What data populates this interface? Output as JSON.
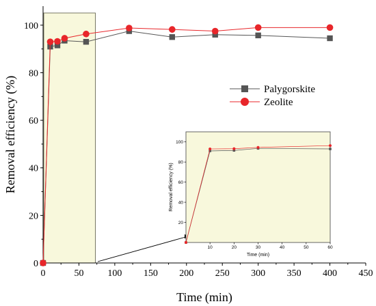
{
  "chart_data": [
    {
      "type": "line",
      "title": "",
      "xlabel": "Time (min)",
      "ylabel": "Removal efficiency (%)",
      "xlim": [
        0,
        450
      ],
      "ylim": [
        0,
        108
      ],
      "xticks": [
        0,
        50,
        100,
        150,
        200,
        250,
        300,
        350,
        400,
        450
      ],
      "yticks": [
        0,
        20,
        40,
        60,
        80,
        100
      ],
      "legend_position": "right-middle",
      "grid": false,
      "series": [
        {
          "name": "Palygorskite",
          "color": "#555555",
          "marker": "square",
          "x": [
            0,
            10,
            20,
            30,
            60,
            120,
            180,
            240,
            300,
            400
          ],
          "y": [
            0,
            91,
            91.5,
            93.5,
            93,
            97.5,
            95,
            96,
            95.7,
            94.5
          ]
        },
        {
          "name": "Zeolite",
          "color": "#e8262a",
          "marker": "circle",
          "x": [
            0,
            10,
            20,
            30,
            60,
            120,
            180,
            240,
            300,
            400
          ],
          "y": [
            0,
            93,
            93.2,
            94.5,
            96.3,
            98.8,
            98.2,
            97.5,
            99,
            99
          ]
        }
      ],
      "highlight": {
        "x_range": [
          0,
          72
        ],
        "color": "#f8f8dc"
      }
    },
    {
      "type": "line",
      "role": "inset",
      "title": "",
      "xlabel": "Time (min)",
      "ylabel": "Removal efficiency (%)",
      "xlim": [
        0,
        60
      ],
      "ylim": [
        0,
        110
      ],
      "xticks": [
        10,
        20,
        30,
        40,
        50,
        60
      ],
      "yticks": [
        20,
        40,
        60,
        80,
        100
      ],
      "background": "#f8f8dc",
      "series": [
        {
          "name": "Palygorskite",
          "color": "#555555",
          "marker": "square",
          "x": [
            0,
            10,
            20,
            30,
            60
          ],
          "y": [
            0,
            91,
            91.5,
            93.5,
            93
          ]
        },
        {
          "name": "Zeolite",
          "color": "#e8262a",
          "marker": "circle",
          "x": [
            0,
            10,
            20,
            30,
            60
          ],
          "y": [
            0,
            93,
            93.2,
            94.5,
            96.3
          ]
        }
      ]
    }
  ]
}
